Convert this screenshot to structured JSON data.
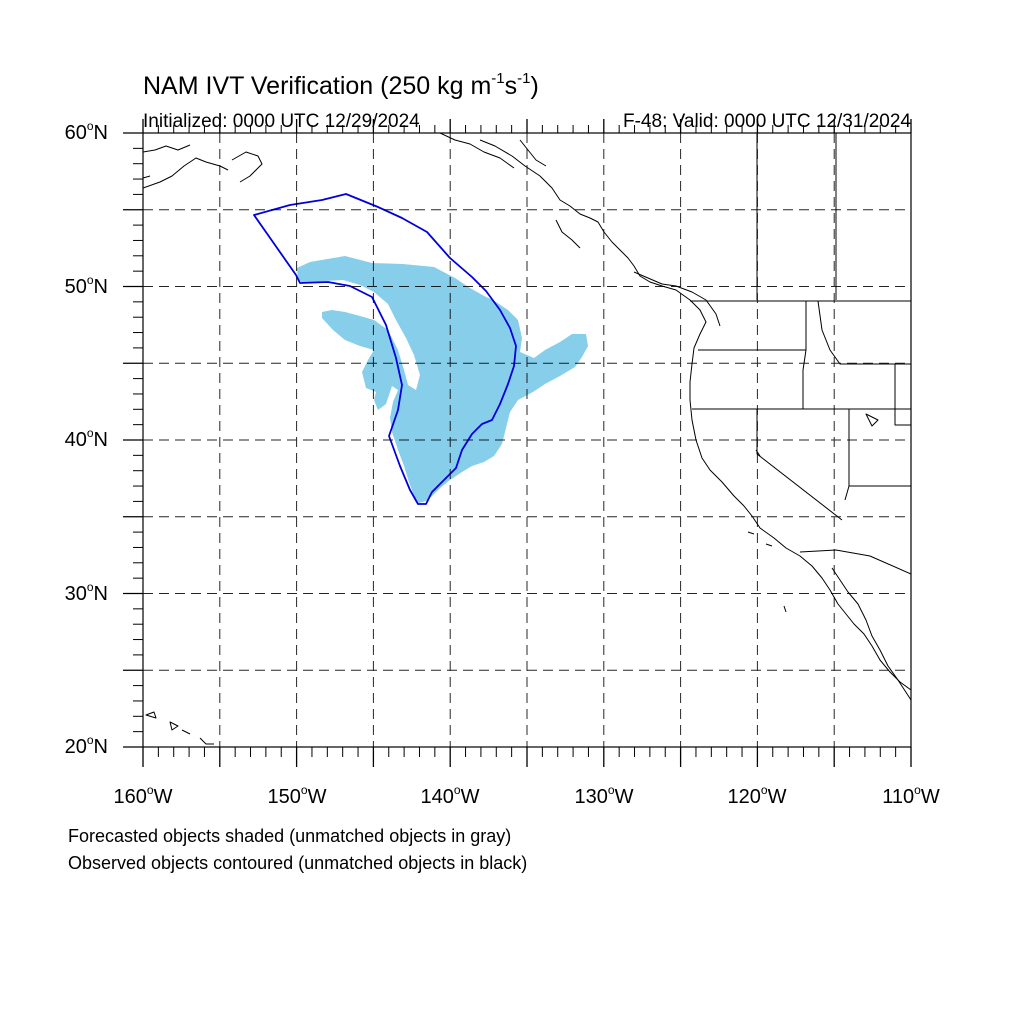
{
  "title": {
    "prefix": "NAM IVT Verification (250 kg m",
    "exp1": "-1",
    "mid": "s",
    "exp2": "-1",
    "suffix": ")"
  },
  "initialized": "Initialized: 0000 UTC 12/29/2024",
  "valid": "F-48: Valid: 0000 UTC 12/31/2024",
  "lat_labels": [
    "60",
    "50",
    "40",
    "30",
    "20"
  ],
  "lat_suffix": "N",
  "lon_labels": [
    "160",
    "150",
    "140",
    "130",
    "120",
    "110"
  ],
  "lon_suffix": "W",
  "degree_symbol": "o",
  "footnote_1": "Forecasted objects shaded (unmatched objects in gray)",
  "footnote_2": "Observed objects contoured (unmatched objects in black)",
  "map": {
    "lon_range": [
      -160,
      -110
    ],
    "lat_range": [
      20,
      60
    ],
    "grid_spacing_deg": 5,
    "forecast_fill_color": "#87ceeb",
    "observed_contour_color": "#0000dd"
  }
}
